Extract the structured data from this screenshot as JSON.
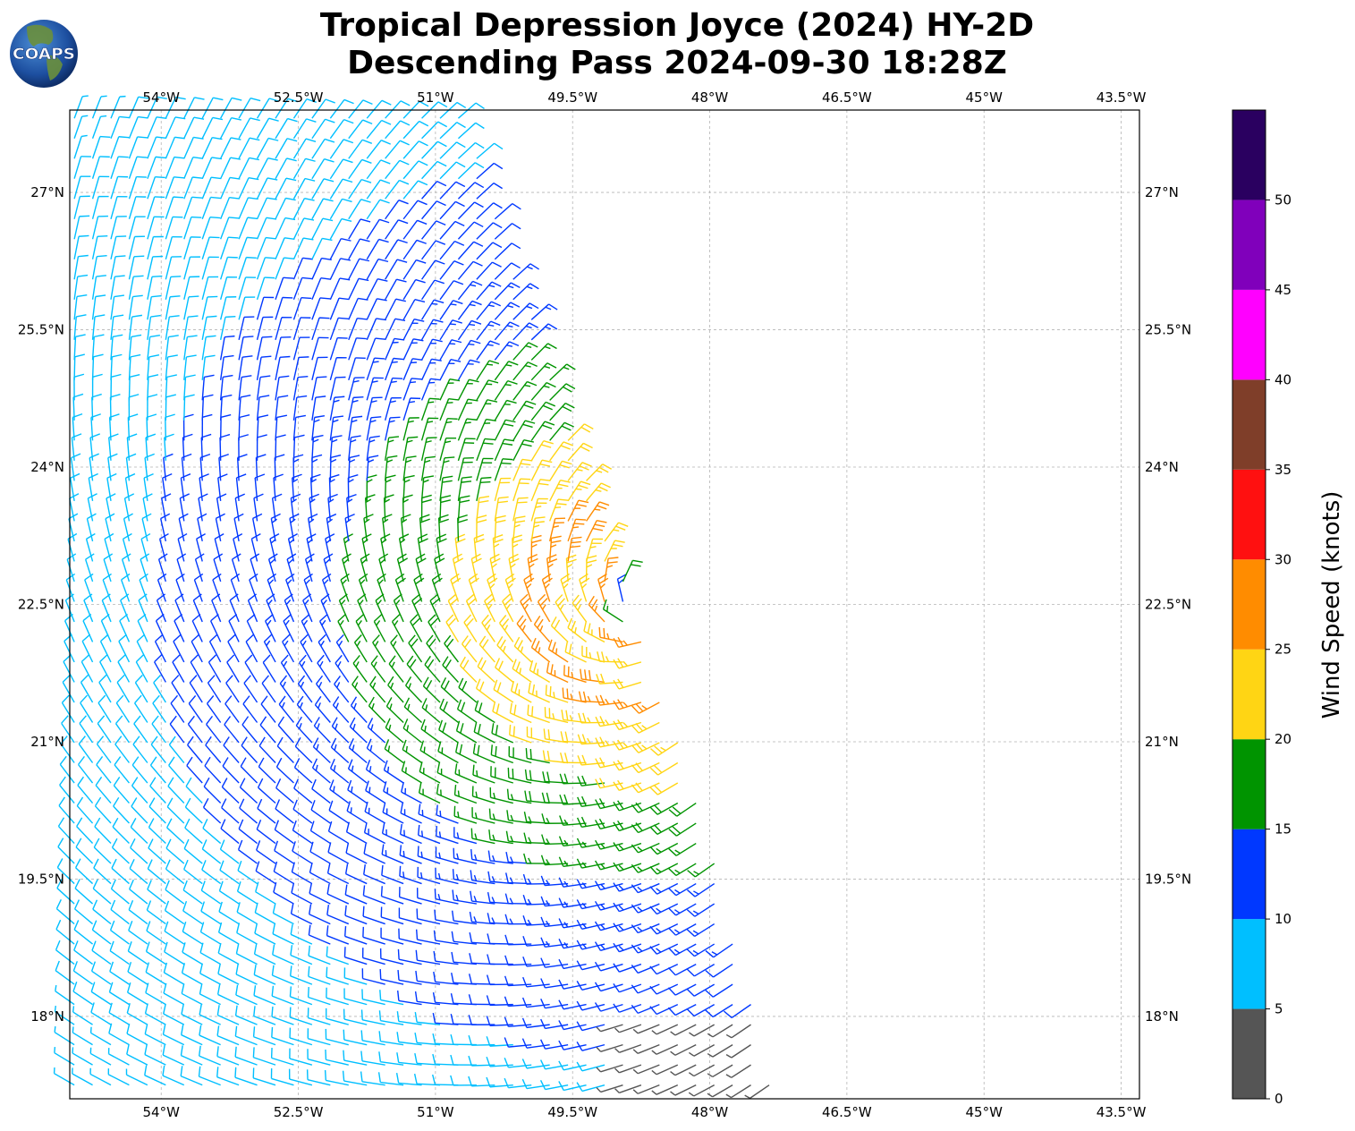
{
  "logo": {
    "text": "COAPS"
  },
  "title_line1": "Tropical Depression Joyce (2024) HY-2D",
  "title_line2": "Descending Pass 2024-09-30 18:28Z",
  "chart_data": {
    "type": "wind barbs",
    "xlim": [
      -55.0,
      -43.3
    ],
    "ylim": [
      17.1,
      27.9
    ],
    "grid": true,
    "x_ticks": [
      {
        "value": -54.0,
        "label": "54°W"
      },
      {
        "value": -52.5,
        "label": "52.5°W"
      },
      {
        "value": -51.0,
        "label": "51°W"
      },
      {
        "value": -49.5,
        "label": "49.5°W"
      },
      {
        "value": -48.0,
        "label": "48°W"
      },
      {
        "value": -46.5,
        "label": "46.5°W"
      },
      {
        "value": -45.0,
        "label": "45°W"
      },
      {
        "value": -43.5,
        "label": "43.5°W"
      }
    ],
    "y_ticks": [
      {
        "value": 27.0,
        "label": "27°N"
      },
      {
        "value": 25.5,
        "label": "25.5°N"
      },
      {
        "value": 24.0,
        "label": "24°N"
      },
      {
        "value": 22.5,
        "label": "22.5°N"
      },
      {
        "value": 21.0,
        "label": "21°N"
      },
      {
        "value": 19.5,
        "label": "19.5°N"
      },
      {
        "value": 18.0,
        "label": "18°N"
      }
    ],
    "storm_center": {
      "lon": -48.7,
      "lat": 22.5
    },
    "swath_east_edge": [
      [
        -50.7,
        27.9
      ],
      [
        -49.4,
        24.0
      ],
      [
        -48.8,
        22.4
      ],
      [
        -48.0,
        20.0
      ],
      [
        -47.3,
        17.1
      ]
    ],
    "colorbar": {
      "label": "Wind Speed (knots)",
      "bins": [
        {
          "min": 0,
          "max": 5,
          "color": "#555555"
        },
        {
          "min": 5,
          "max": 10,
          "color": "#00bfff"
        },
        {
          "min": 10,
          "max": 15,
          "color": "#0038ff"
        },
        {
          "min": 15,
          "max": 20,
          "color": "#009400"
        },
        {
          "min": 20,
          "max": 25,
          "color": "#ffd514"
        },
        {
          "min": 25,
          "max": 30,
          "color": "#ff8c00"
        },
        {
          "min": 30,
          "max": 35,
          "color": "#ff1010"
        },
        {
          "min": 35,
          "max": 40,
          "color": "#7f3e29"
        },
        {
          "min": 40,
          "max": 45,
          "color": "#ff00ff"
        },
        {
          "min": 45,
          "max": 50,
          "color": "#8000bb"
        },
        {
          "min": 50,
          "max": 55,
          "color": "#2a0060"
        }
      ],
      "ticks": [
        {
          "value": 0,
          "label": "0"
        },
        {
          "value": 5,
          "label": "5"
        },
        {
          "value": 10,
          "label": "10"
        },
        {
          "value": 15,
          "label": "15"
        },
        {
          "value": 20,
          "label": "20"
        },
        {
          "value": 25,
          "label": "25"
        },
        {
          "value": 30,
          "label": "30"
        },
        {
          "value": 35,
          "label": "35"
        },
        {
          "value": 40,
          "label": "40"
        },
        {
          "value": 45,
          "label": "45"
        },
        {
          "value": 50,
          "label": "50"
        }
      ]
    }
  }
}
